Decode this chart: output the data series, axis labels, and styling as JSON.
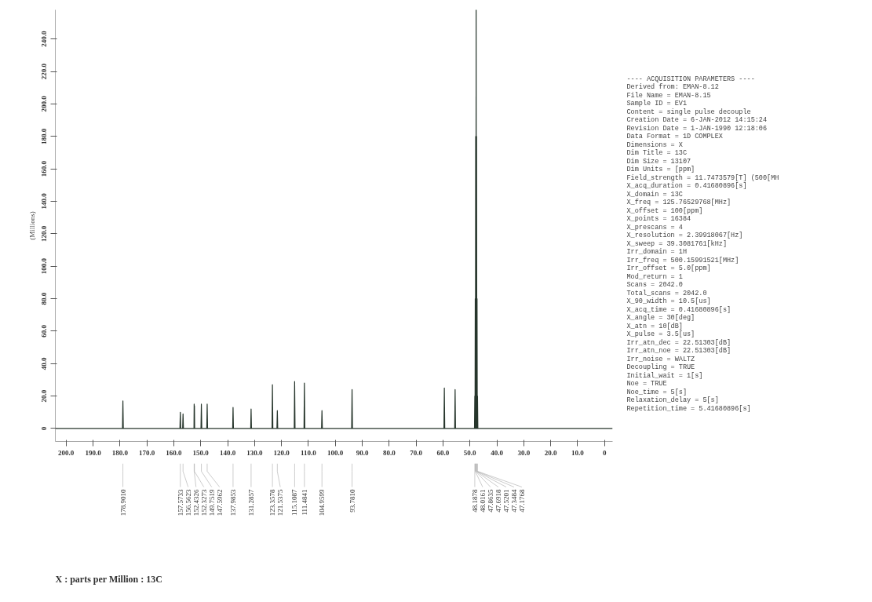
{
  "chart_data": {
    "type": "line",
    "ylabel": "(Millions)",
    "xlim": [
      204,
      -3
    ],
    "ylim": [
      -8,
      258
    ],
    "xticks": [
      {
        "value": 200,
        "label": "200.0"
      },
      {
        "value": 190,
        "label": "190.0"
      },
      {
        "value": 180,
        "label": "180.0"
      },
      {
        "value": 170,
        "label": "170.0"
      },
      {
        "value": 160,
        "label": "160.0"
      },
      {
        "value": 150,
        "label": "150.0"
      },
      {
        "value": 140,
        "label": "140.0"
      },
      {
        "value": 130,
        "label": "130.0"
      },
      {
        "value": 120,
        "label": "120.0"
      },
      {
        "value": 110,
        "label": "110.0"
      },
      {
        "value": 100,
        "label": "100.0"
      },
      {
        "value": 90,
        "label": "90.0"
      },
      {
        "value": 80,
        "label": "80.0"
      },
      {
        "value": 70,
        "label": "70.0"
      },
      {
        "value": 60,
        "label": "60.0"
      },
      {
        "value": 50,
        "label": "50.0"
      },
      {
        "value": 40,
        "label": "40.0"
      },
      {
        "value": 30,
        "label": "30.0"
      },
      {
        "value": 20,
        "label": "20.0"
      },
      {
        "value": 10,
        "label": "10.0"
      },
      0
    ],
    "yticks": [
      0,
      {
        "value": 20,
        "label": "20.0"
      },
      {
        "value": 40,
        "label": "40.0"
      },
      {
        "value": 60,
        "label": "60.0"
      },
      {
        "value": 80,
        "label": "80.0"
      },
      {
        "value": 100,
        "label": "100.0"
      },
      {
        "value": 120,
        "label": "120.0"
      },
      {
        "value": 140,
        "label": "140.0"
      },
      {
        "value": 160,
        "label": "160.0"
      },
      {
        "value": 180,
        "label": "180.0"
      },
      {
        "value": 200,
        "label": "200.0"
      },
      {
        "value": 220,
        "label": "220.0"
      },
      {
        "value": 240,
        "label": "240.0"
      }
    ],
    "grid": false,
    "series": [
      {
        "color": "#26352b",
        "x": [
          204,
          179.05,
          178.901,
          178.75,
          157.72,
          157.5733,
          157.42,
          156.71,
          156.5623,
          156.41,
          152.5,
          152.4326,
          152.38,
          152.3273,
          152.25,
          149.9,
          149.7519,
          149.6,
          147.75,
          147.5962,
          147.45,
          138.13,
          137.9853,
          137.84,
          131.43,
          131.2857,
          131.14,
          123.5,
          123.3578,
          123.2,
          121.69,
          121.5375,
          121.39,
          115.26,
          115.1087,
          114.96,
          111.63,
          111.4841,
          111.33,
          105.11,
          104.9599,
          104.81,
          93.93,
          93.781,
          93.63,
          59.65,
          59.5,
          59.35,
          55.65,
          55.5,
          55.35,
          48.3,
          48.1878,
          48.1,
          48.0161,
          47.94,
          47.8635,
          47.78,
          47.6918,
          47.6,
          47.5201,
          47.43,
          47.3484,
          47.26,
          47.1768,
          47.05,
          -3
        ],
        "values": [
          0,
          0,
          17,
          0,
          0,
          10,
          0,
          0,
          9,
          0,
          0,
          15,
          0,
          14,
          0,
          0,
          15,
          0,
          0,
          15,
          0,
          0,
          13,
          0,
          0,
          12,
          0,
          0,
          27,
          0,
          0,
          11,
          0,
          0,
          29,
          0,
          0,
          28,
          0,
          0,
          11,
          0,
          0,
          24,
          0,
          0,
          25,
          0,
          0,
          24,
          0,
          0,
          20,
          0,
          80,
          0,
          180,
          0,
          258,
          0,
          180,
          0,
          80,
          0,
          20,
          0,
          0
        ]
      }
    ],
    "annotations": [
      {
        "text": "178.9010",
        "x": 178.901
      },
      {
        "text": "157.5733",
        "x": 157.5733
      },
      {
        "text": "156.5623",
        "x": 156.5623
      },
      {
        "text": "152.4326",
        "x": 152.4326
      },
      {
        "text": "152.3273",
        "x": 152.3273
      },
      {
        "text": "149.7519",
        "x": 149.7519
      },
      {
        "text": "147.5962",
        "x": 147.5962
      },
      {
        "text": "137.9853",
        "x": 137.9853
      },
      {
        "text": "131.2857",
        "x": 131.2857
      },
      {
        "text": "123.3578",
        "x": 123.3578
      },
      {
        "text": "121.5375",
        "x": 121.5375
      },
      {
        "text": "115.1087",
        "x": 115.1087
      },
      {
        "text": "111.4841",
        "x": 111.4841
      },
      {
        "text": "104.9599",
        "x": 104.9599
      },
      {
        "text": "93.7810",
        "x": 93.781
      },
      {
        "text": "48.1878",
        "x": 48.1878
      },
      {
        "text": "48.0161",
        "x": 48.0161
      },
      {
        "text": "47.8635",
        "x": 47.8635
      },
      {
        "text": "47.6918",
        "x": 47.6918
      },
      {
        "text": "47.5201",
        "x": 47.5201
      },
      {
        "text": "47.3484",
        "x": 47.3484
      },
      {
        "text": "47.1768",
        "x": 47.1768
      },
      "X : parts per Million : 13C",
      "---- ACQUISITION PARAMETERS ----",
      "Derived from: EMAN-8.12",
      "File Name        = EMAN-8.15",
      "Sample ID        = EV1",
      "Content          = single pulse decouple",
      "Creation Date    = 6-JAN-2012 14:15:24",
      "Revision Date    = 1-JAN-1990 12:18:06",
      "Data Format      = 1D COMPLEX",
      "Dimensions       = X",
      "Dim Title        = 13C",
      "Dim Size         = 13107",
      "Dim Units        = [ppm]",
      "Field_strength   = 11.7473579[T] (500[MH",
      "X_acq_duration   = 0.41680896[s]",
      "X_domain         = 13C",
      "X_freq           = 125.76529768[MHz]",
      "X_offset         = 100[ppm]",
      "X_points         = 16384",
      "X_prescans       = 4",
      "X_resolution     = 2.39918067[Hz]",
      "X_sweep          = 39.3081761[kHz]",
      "Irr_domain       = 1H",
      "Irr_freq         = 500.15991521[MHz]",
      "Irr_offset       = 5.0[ppm]",
      "Mod_return       = 1",
      "Scans            = 2042.0",
      "Total_scans      = 2042.0",
      "X_90_width       = 10.5[us]",
      "X_acq_time       = 0.41680896[s]",
      "X_angle          = 30[deg]",
      "X_atn            = 10[dB]",
      "X_pulse          = 3.5[us]",
      "Irr_atn_dec      = 22.51303[dB]",
      "Irr_atn_noe      = 22.51303[dB]",
      "Irr_noise        = WALTZ",
      "Decoupling       = TRUE",
      "Initial_wait     = 1[s]",
      "Noe              = TRUE",
      "Noe_time         = 5[s]",
      "Relaxation_delay = 5[s]",
      "Repetition_time  = 5.41680896[s]"
    ]
  }
}
